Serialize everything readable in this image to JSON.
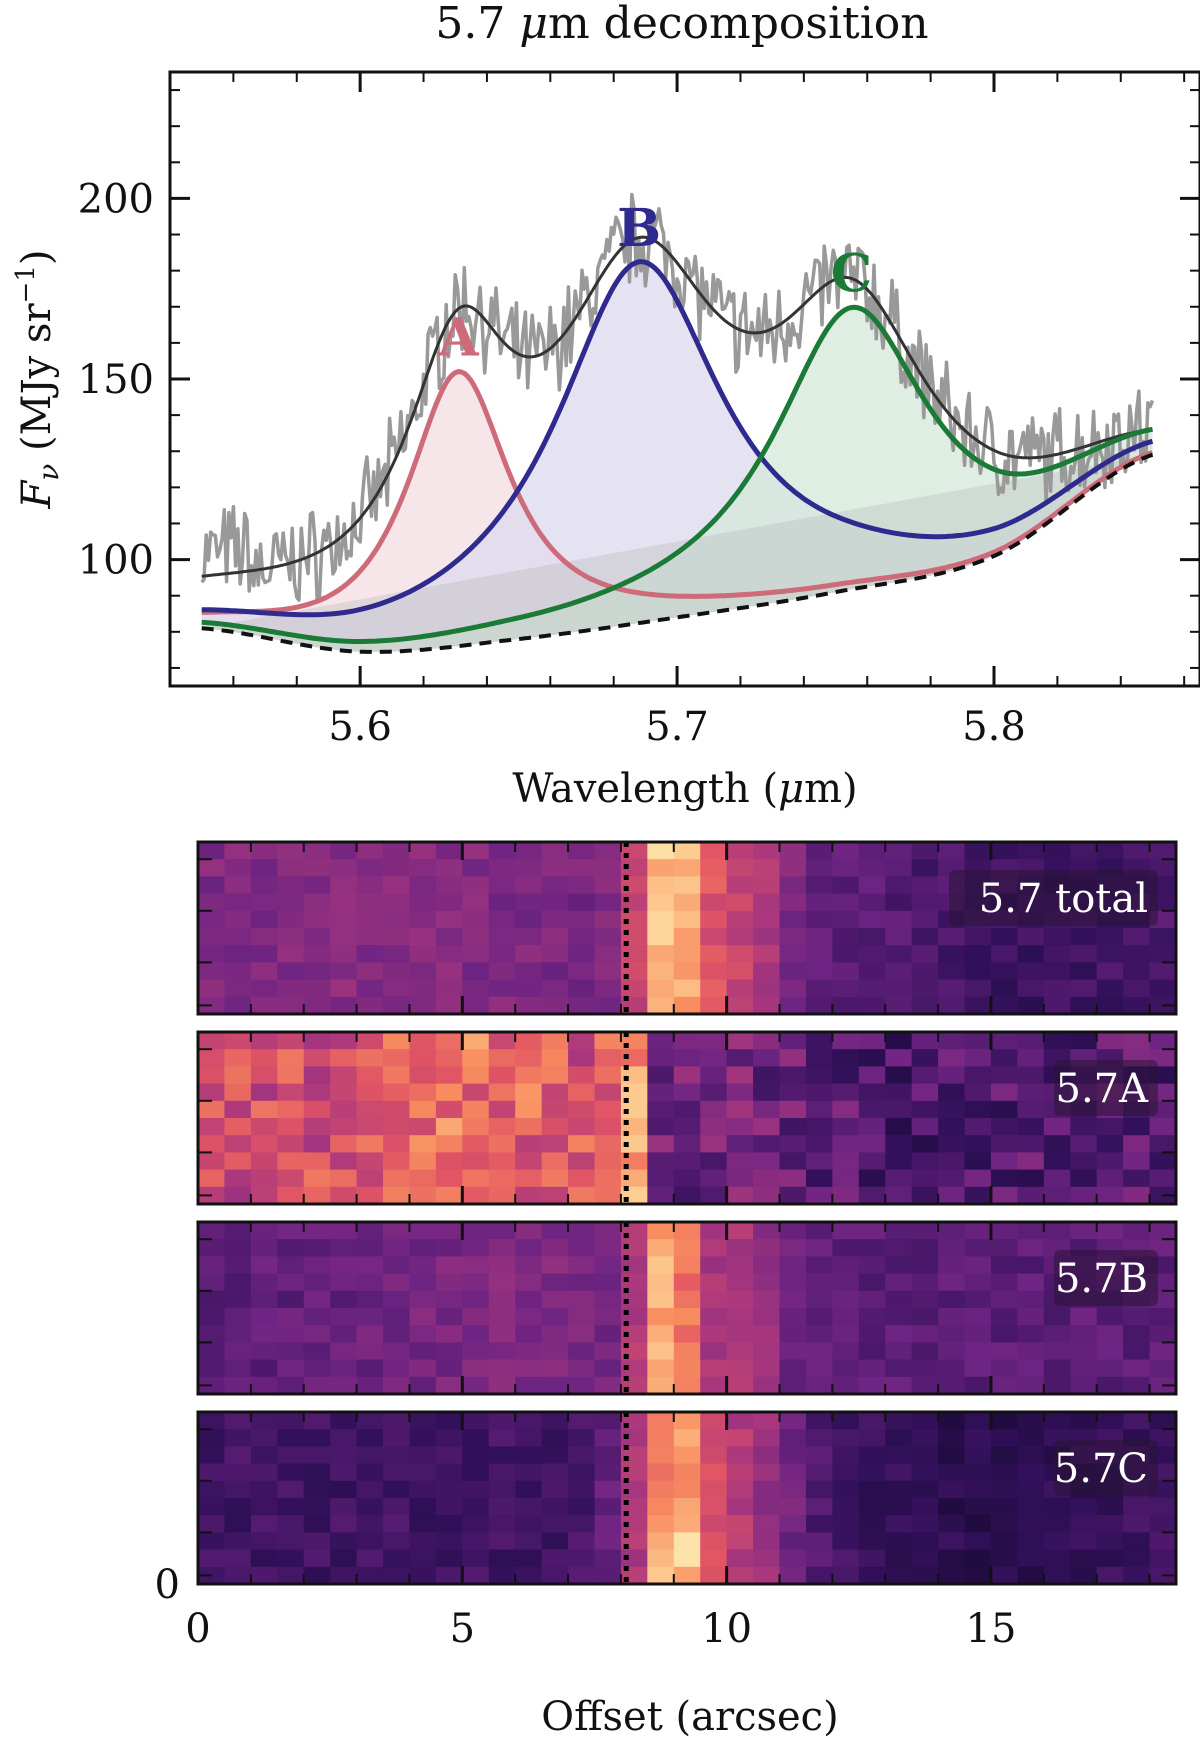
{
  "chart_data": [
    {
      "type": "line",
      "title": "5.7 μm decomposition",
      "xlabel": "Wavelength (μm)",
      "ylabel": "Fν (MJy sr⁻¹)",
      "xlim": [
        5.54,
        5.865
      ],
      "ylim": [
        65,
        235
      ],
      "xticks": [
        5.6,
        5.7,
        5.8
      ],
      "yticks": [
        100,
        150,
        200
      ],
      "xtick_labels": [
        "5.6",
        "5.7",
        "5.8"
      ],
      "ytick_labels": [
        "100",
        "150",
        "200"
      ],
      "continuum": {
        "x": [
          5.55,
          5.6,
          5.65,
          5.7,
          5.75,
          5.8,
          5.85
        ],
        "y": [
          81,
          74.5,
          78,
          84,
          91,
          101,
          129
        ]
      },
      "components": [
        {
          "label": "A",
          "color": "#cd6b7a",
          "fill": "#f4dde2",
          "center": 5.631,
          "amplitude": 76,
          "width": 0.02
        },
        {
          "label": "B",
          "color": "#2e2a8e",
          "fill": "#dcdaee",
          "center": 5.688,
          "amplitude": 100,
          "width": 0.032
        },
        {
          "label": "C",
          "color": "#1b7a36",
          "fill": "#d3e8da",
          "center": 5.755,
          "amplitude": 78,
          "width": 0.03
        }
      ],
      "data_color": "#999999",
      "model_color": "#333333",
      "continuum_color": "#111111"
    },
    {
      "type": "heatmap",
      "xlabel": "Offset (arcsec)",
      "xlim": [
        0,
        18.5
      ],
      "xticks": [
        0,
        5,
        10,
        15
      ],
      "xtick_labels": [
        "0",
        "5",
        "10",
        "15"
      ],
      "ytick_label": "0",
      "vline_x": 8.1,
      "colormap": "magma",
      "panels": [
        {
          "label": "5.7 total",
          "profile": "total"
        },
        {
          "label": "5.7A",
          "profile": "A"
        },
        {
          "label": "5.7B",
          "profile": "B"
        },
        {
          "label": "5.7C",
          "profile": "C"
        }
      ]
    }
  ]
}
